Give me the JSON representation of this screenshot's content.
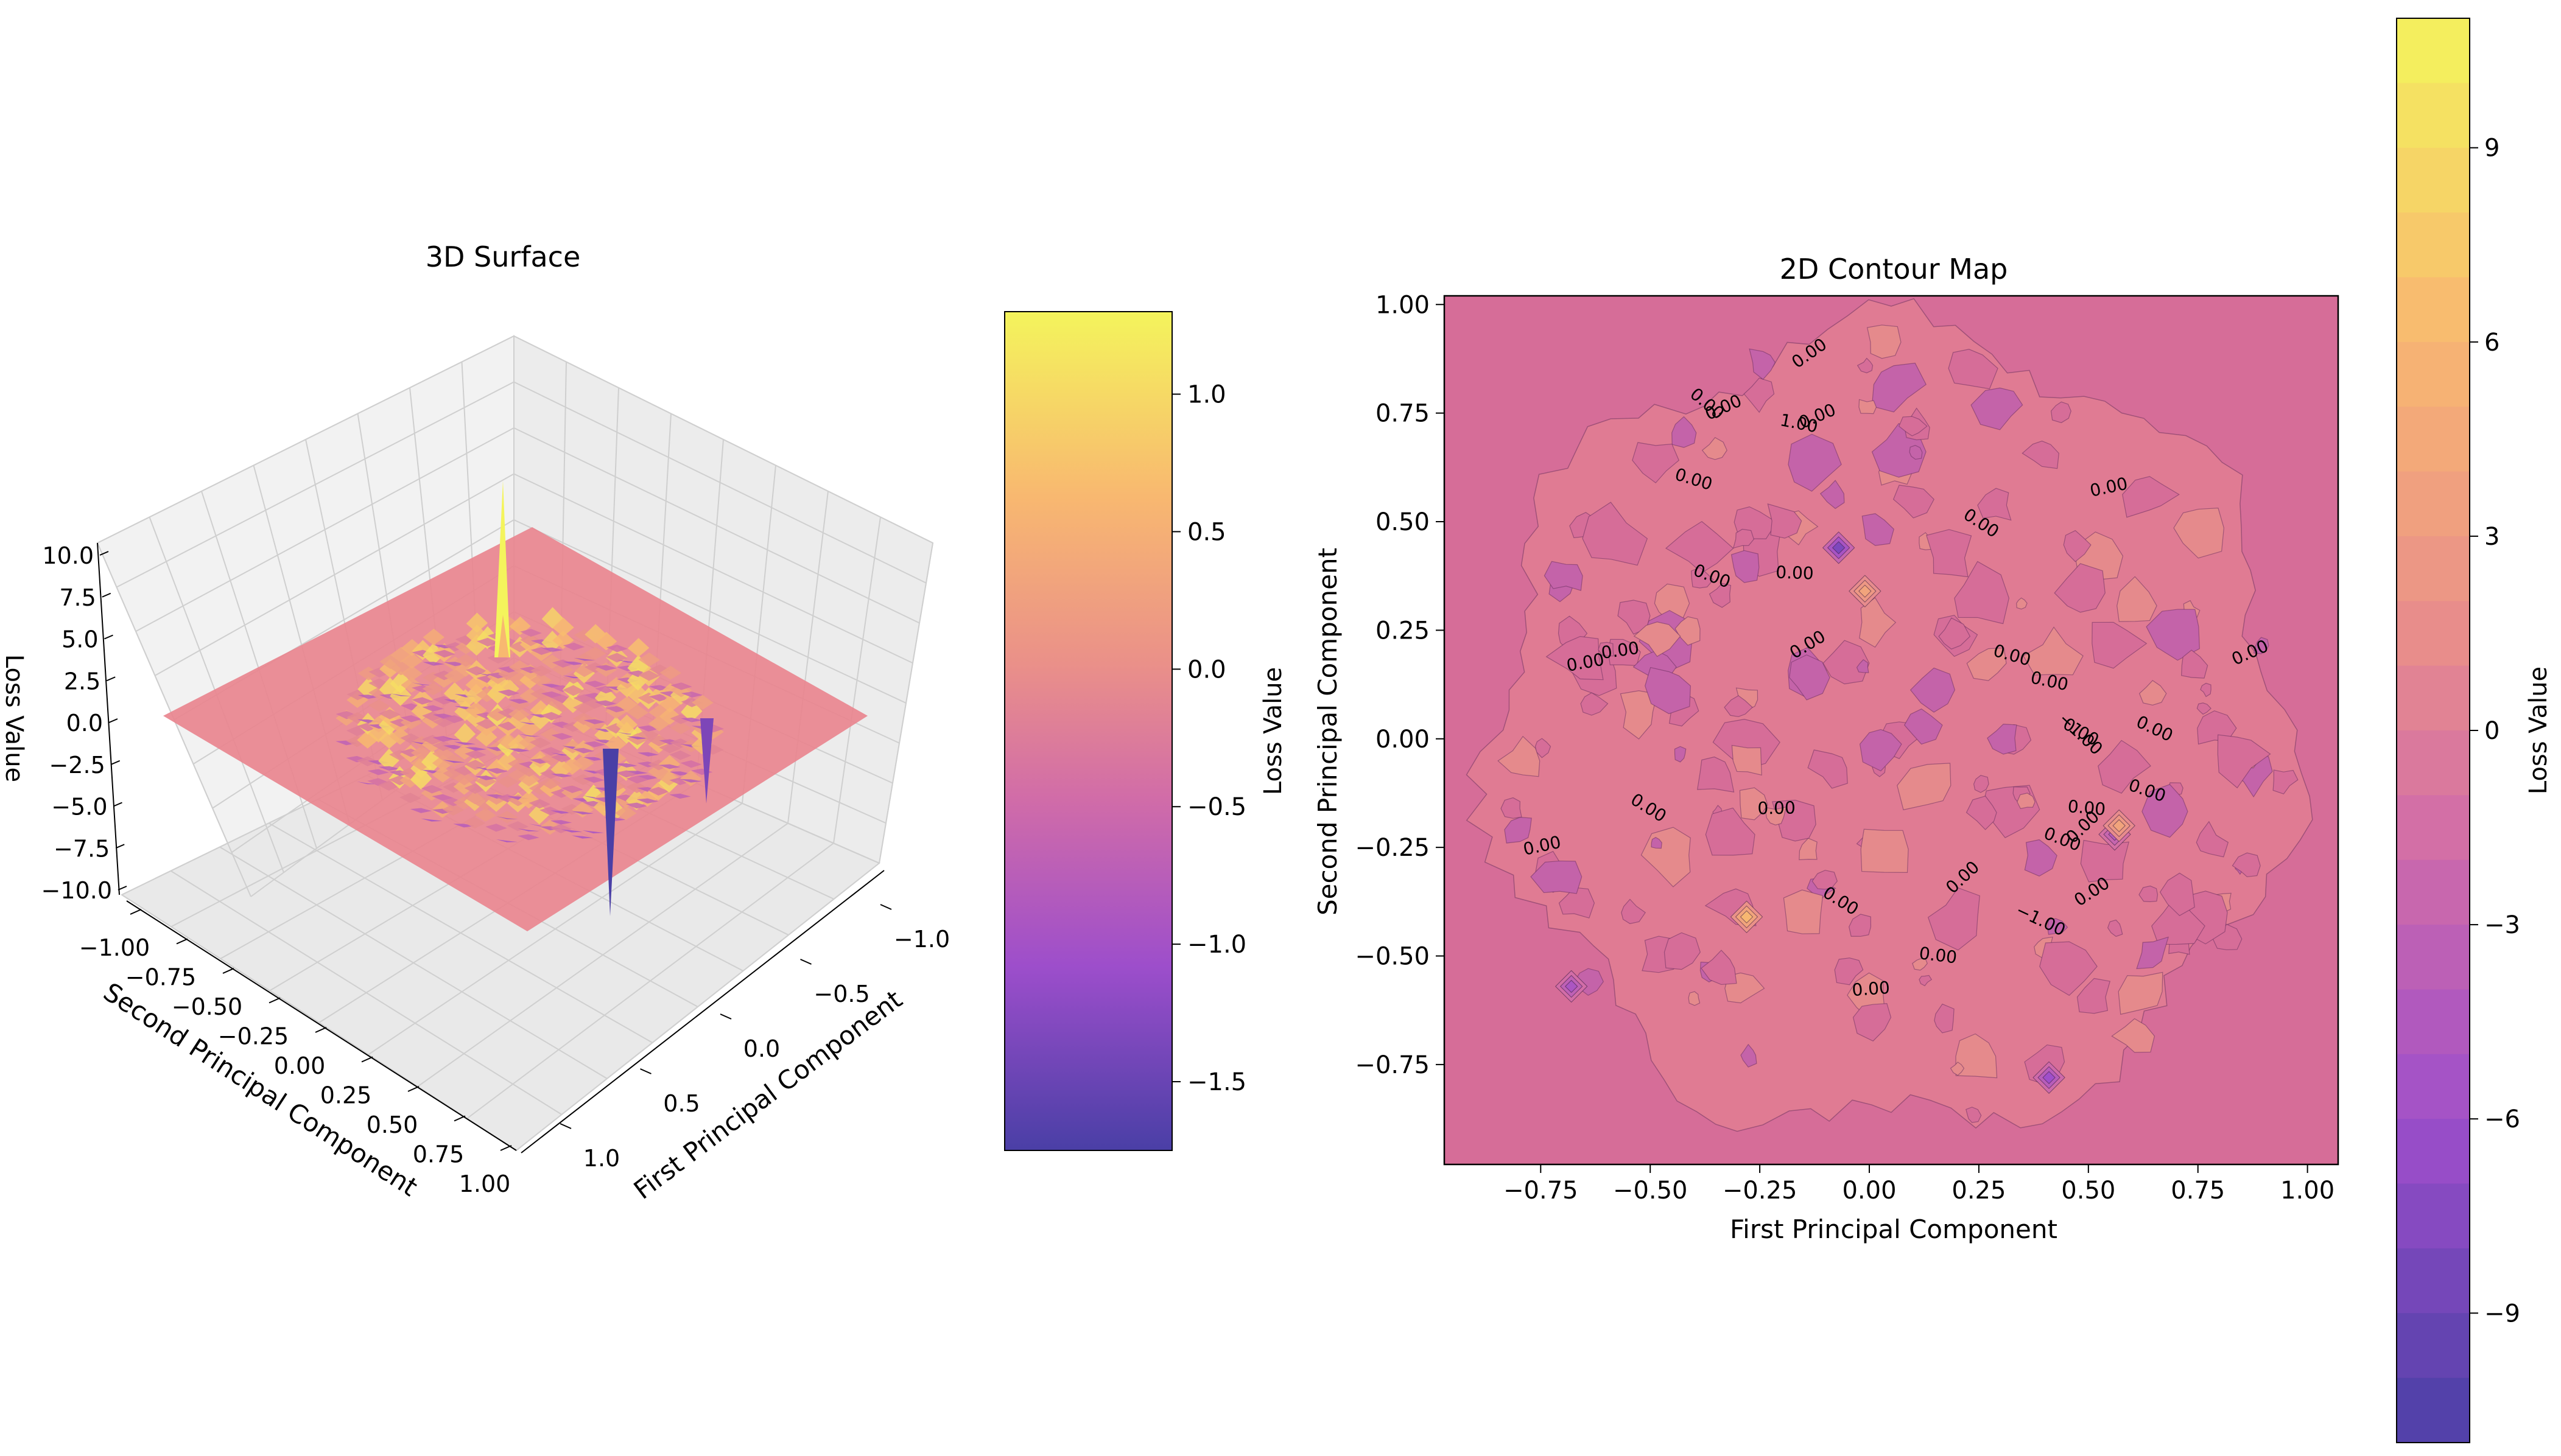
{
  "chart_data": [
    {
      "type": "surface3d",
      "title": "3D Surface",
      "xlabel": "First Principal Component",
      "ylabel": "Second Principal Component",
      "zlabel": "Loss Value",
      "x_ticks": [
        "−1.0",
        "−0.5",
        "0.0",
        "0.5",
        "1.0"
      ],
      "y_ticks": [
        "−1.00",
        "−0.75",
        "−0.50",
        "−0.25",
        "0.00",
        "0.25",
        "0.50",
        "0.75",
        "1.00"
      ],
      "z_ticks": [
        "10.0",
        "7.5",
        "5.0",
        "2.5",
        "0.0",
        "−2.5",
        "−5.0",
        "−7.5",
        "−10.0"
      ],
      "xlim": [
        -1.0,
        1.0
      ],
      "ylim": [
        -1.0,
        1.0
      ],
      "zlim": [
        -10.0,
        10.0
      ],
      "colormap": "plasma",
      "colorbar": {
        "label": "Loss Value",
        "ticks": [
          "1.0",
          "0.5",
          "0.0",
          "−0.5",
          "−1.0",
          "−1.5"
        ],
        "tick_values": [
          1.0,
          0.5,
          0.0,
          -0.5,
          -1.0,
          -1.5
        ],
        "range": [
          -1.75,
          1.3
        ]
      },
      "features": [
        {
          "x": 0.42,
          "y": 0.38,
          "z": 9.5,
          "kind": "spike"
        },
        {
          "x": -0.05,
          "y": 0.45,
          "z": -7.0,
          "kind": "dip"
        }
      ],
      "grid": true
    },
    {
      "type": "contour",
      "title": "2D Contour Map",
      "xlabel": "First Principal Component",
      "ylabel": "Second Principal Component",
      "x_ticks": [
        "−0.75",
        "−0.50",
        "−0.25",
        "0.00",
        "0.25",
        "0.50",
        "0.75",
        "1.00"
      ],
      "y_ticks": [
        "1.00",
        "0.75",
        "0.50",
        "0.25",
        "0.00",
        "−0.25",
        "−0.50",
        "−0.75"
      ],
      "xlim": [
        -0.97,
        1.07
      ],
      "ylim": [
        -0.98,
        1.02
      ],
      "colormap": "plasma",
      "colorbar": {
        "label": "Loss Value",
        "ticks": [
          "9",
          "6",
          "3",
          "0",
          "−3",
          "−6",
          "−9"
        ],
        "tick_values": [
          9,
          6,
          3,
          0,
          -3,
          -6,
          -9
        ],
        "range": [
          -11,
          11
        ]
      },
      "contour_labels": [
        "−1.00",
        "0.00",
        "0.00",
        "0.00",
        "0.00",
        "0.00",
        "0.00",
        "1.00",
        "0.00",
        "0.00",
        "0.00",
        "0.00",
        "0.00",
        "0.00",
        "0.00",
        "0.00",
        "0.00",
        "0.00",
        "0.00",
        "0.00",
        "0.00",
        "0.00",
        "0.00",
        "−1.00",
        "0.00",
        "0.00",
        "0.00",
        "0.00",
        "0.00",
        "0.00",
        "0.00",
        "0.00"
      ],
      "hotspots": [
        {
          "x": -0.07,
          "y": 0.44,
          "value": -8
        },
        {
          "x": -0.01,
          "y": 0.34,
          "value": 4
        },
        {
          "x": -0.28,
          "y": -0.41,
          "value": 6
        },
        {
          "x": 0.56,
          "y": -0.22,
          "value": -4
        },
        {
          "x": 0.57,
          "y": -0.2,
          "value": 4
        },
        {
          "x": 0.41,
          "y": -0.78,
          "value": -6
        },
        {
          "x": -0.68,
          "y": -0.57,
          "value": -5
        }
      ]
    }
  ]
}
